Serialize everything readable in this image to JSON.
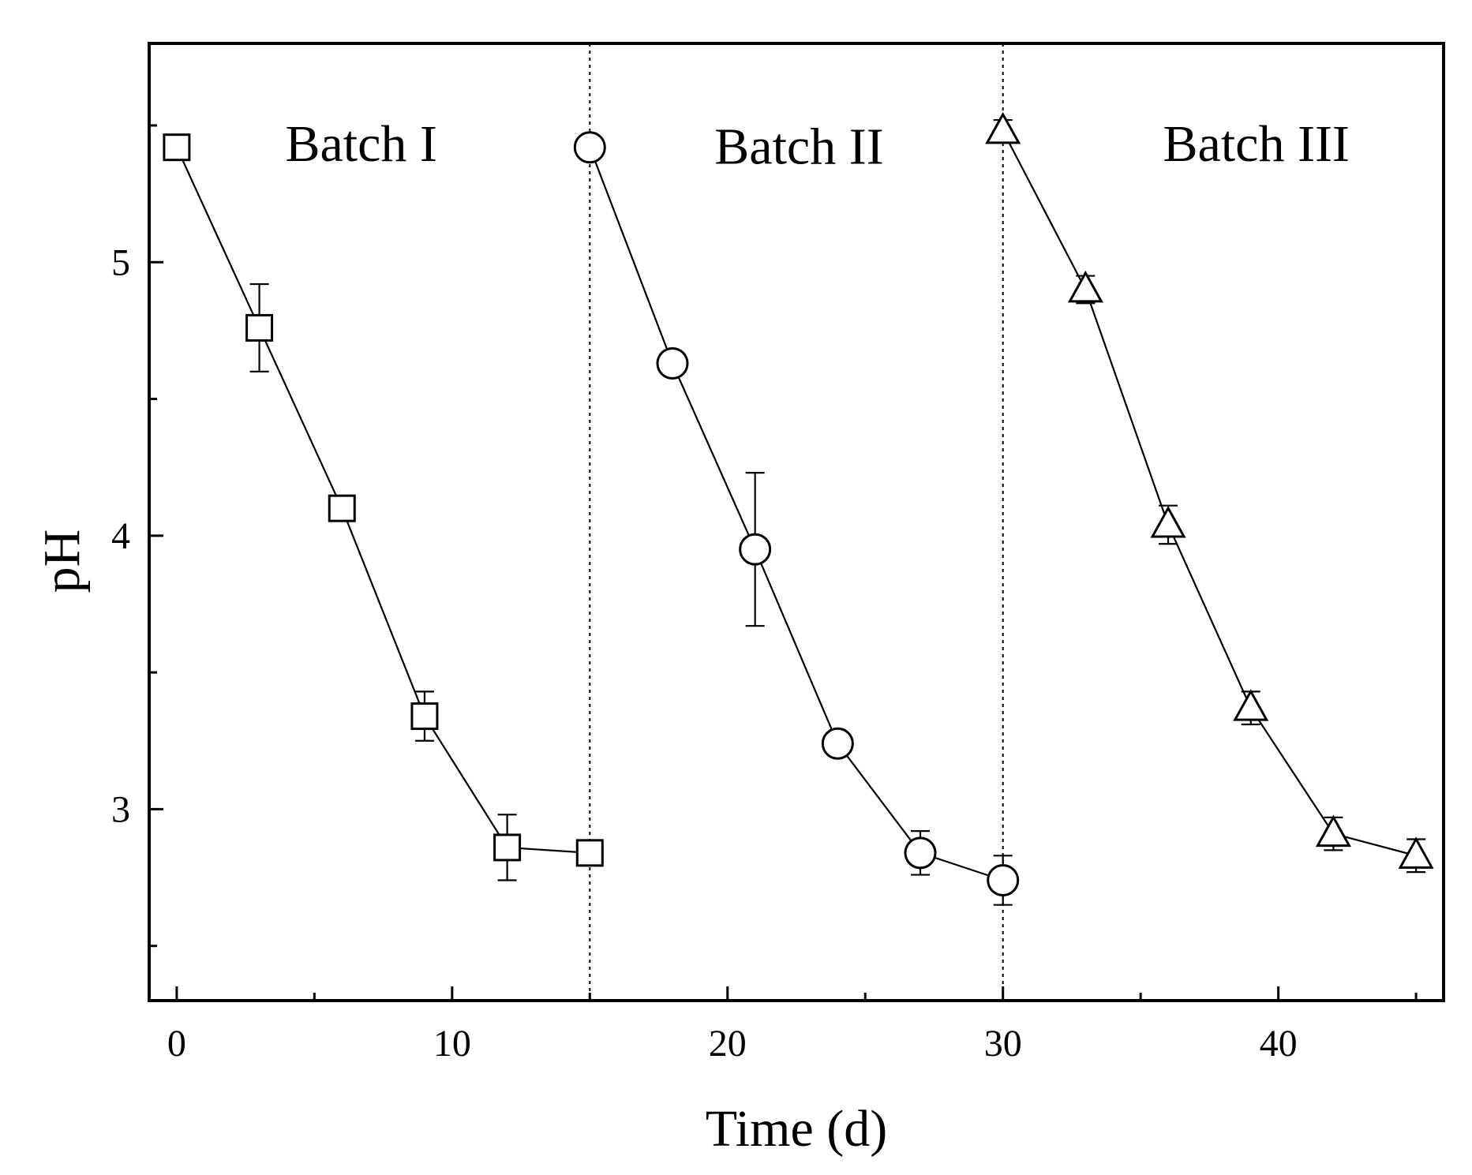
{
  "chart_data": {
    "type": "line",
    "xlabel": "Time (d)",
    "ylabel": "pH",
    "xlim": [
      -1,
      46
    ],
    "ylim": [
      2.3,
      5.8
    ],
    "x_ticks": [
      0,
      10,
      20,
      30,
      40
    ],
    "x_minor_ticks": [
      5,
      15,
      25,
      35,
      45
    ],
    "y_ticks": [
      3,
      4,
      5
    ],
    "y_minor_ticks": [
      2.5,
      3.5,
      4.5,
      5.5
    ],
    "grid": false,
    "dividers_x": [
      15,
      30
    ],
    "annotations": [
      {
        "text": "Batch I",
        "x": 6.7,
        "y": 5.37
      },
      {
        "text": "Batch II",
        "x": 22.6,
        "y": 5.36
      },
      {
        "text": "Batch III",
        "x": 39.2,
        "y": 5.37
      }
    ],
    "series": [
      {
        "marker": "square",
        "points": [
          {
            "x": 0,
            "y": 5.42,
            "err": 0.03
          },
          {
            "x": 3,
            "y": 4.76,
            "err": 0.16
          },
          {
            "x": 6,
            "y": 4.1,
            "err": 0.04
          },
          {
            "x": 9,
            "y": 3.34,
            "err": 0.09
          },
          {
            "x": 12,
            "y": 2.86,
            "err": 0.12
          },
          {
            "x": 15,
            "y": 2.84,
            "err": 0.0
          }
        ]
      },
      {
        "marker": "circle",
        "points": [
          {
            "x": 15,
            "y": 5.42,
            "err": 0.03
          },
          {
            "x": 18,
            "y": 4.63,
            "err": 0.03
          },
          {
            "x": 21,
            "y": 3.95,
            "err": 0.28
          },
          {
            "x": 24,
            "y": 3.24,
            "err": 0.02
          },
          {
            "x": 27,
            "y": 2.84,
            "err": 0.08
          },
          {
            "x": 30,
            "y": 2.74,
            "err": 0.09
          }
        ]
      },
      {
        "marker": "triangle",
        "points": [
          {
            "x": 30,
            "y": 5.48,
            "err": 0.04
          },
          {
            "x": 33,
            "y": 4.9,
            "err": 0.05
          },
          {
            "x": 36,
            "y": 4.04,
            "err": 0.07
          },
          {
            "x": 39,
            "y": 3.37,
            "err": 0.06
          },
          {
            "x": 42,
            "y": 2.91,
            "err": 0.06
          },
          {
            "x": 45,
            "y": 2.83,
            "err": 0.06
          }
        ]
      }
    ]
  }
}
